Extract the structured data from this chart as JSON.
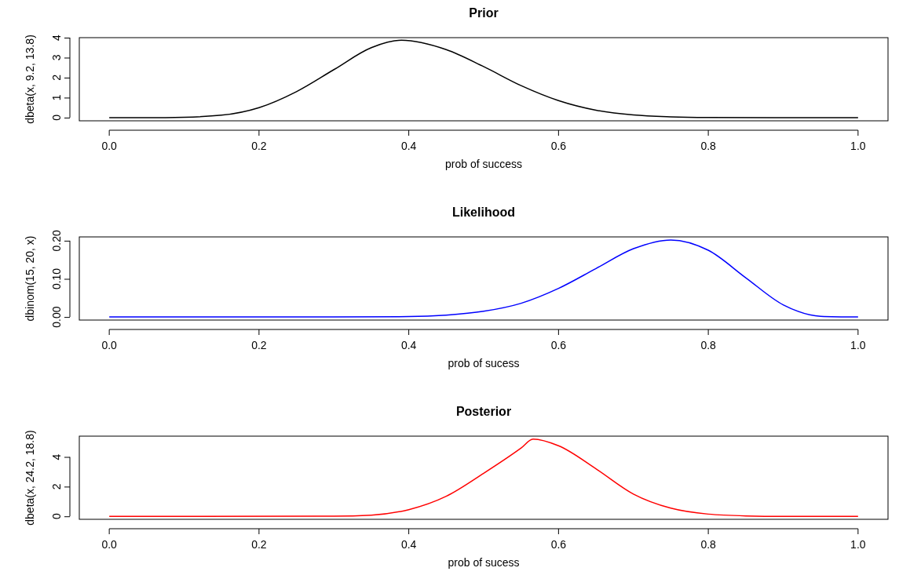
{
  "chart_data": [
    {
      "type": "line",
      "title": "Prior",
      "xlabel": "prob of success",
      "ylabel": "dbeta(x, 9.2, 13.8)",
      "xlim": [
        -0.04,
        1.04
      ],
      "ylim": [
        -0.16,
        4.0
      ],
      "xticks": [
        {
          "value": 0,
          "label": "0.0"
        },
        {
          "value": 0.2,
          "label": "0.2"
        },
        {
          "value": 0.4,
          "label": "0.4"
        },
        {
          "value": 0.6,
          "label": "0.6"
        },
        {
          "value": 0.8,
          "label": "0.8"
        },
        {
          "value": 1,
          "label": "1.0"
        }
      ],
      "yticks": [
        0,
        1,
        2,
        3,
        4
      ],
      "series": [
        {
          "color": "#000000",
          "x": [
            0,
            0.05,
            0.1,
            0.15,
            0.2,
            0.25,
            0.3,
            0.35,
            0.39,
            0.45,
            0.5,
            0.55,
            0.6,
            0.65,
            0.7,
            0.75,
            0.8,
            0.9,
            1.0
          ],
          "values": [
            0,
            0,
            0.02,
            0.12,
            0.5,
            1.3,
            2.4,
            3.5,
            3.87,
            3.4,
            2.55,
            1.6,
            0.85,
            0.37,
            0.13,
            0.04,
            0.01,
            0,
            0
          ]
        }
      ]
    },
    {
      "type": "line",
      "title": "Likelihood",
      "xlabel": "prob of sucess",
      "ylabel": "dbinom(15, 20, x)",
      "xlim": [
        -0.04,
        1.04
      ],
      "ylim": [
        -0.008,
        0.21
      ],
      "xticks": [
        {
          "value": 0,
          "label": "0.0"
        },
        {
          "value": 0.2,
          "label": "0.2"
        },
        {
          "value": 0.4,
          "label": "0.4"
        },
        {
          "value": 0.6,
          "label": "0.6"
        },
        {
          "value": 0.8,
          "label": "0.8"
        },
        {
          "value": 1,
          "label": "1.0"
        }
      ],
      "yticks": [
        {
          "value": 0,
          "label": "0.00"
        },
        {
          "value": 0.1,
          "label": "0.10"
        },
        {
          "value": 0.2,
          "label": "0.20"
        }
      ],
      "series": [
        {
          "color": "#0000ff",
          "x": [
            0,
            0.3,
            0.4,
            0.45,
            0.5,
            0.55,
            0.6,
            0.65,
            0.7,
            0.75,
            0.8,
            0.85,
            0.9,
            0.95,
            1.0
          ],
          "values": [
            0,
            0,
            0.001,
            0.005,
            0.015,
            0.036,
            0.075,
            0.127,
            0.179,
            0.202,
            0.175,
            0.103,
            0.032,
            0.002,
            0
          ]
        }
      ]
    },
    {
      "type": "line",
      "title": "Posterior",
      "xlabel": "prob of sucess",
      "ylabel": "dbeta(x, 24.2, 18.8)",
      "xlim": [
        -0.04,
        1.04
      ],
      "ylim": [
        -0.2,
        5.4
      ],
      "xticks": [
        {
          "value": 0,
          "label": "0.0"
        },
        {
          "value": 0.2,
          "label": "0.2"
        },
        {
          "value": 0.4,
          "label": "0.4"
        },
        {
          "value": 0.6,
          "label": "0.6"
        },
        {
          "value": 0.8,
          "label": "0.8"
        },
        {
          "value": 1,
          "label": "1.0"
        }
      ],
      "yticks": [
        0,
        2,
        4
      ],
      "series": [
        {
          "color": "#ff0000",
          "x": [
            0,
            0.3,
            0.35,
            0.4,
            0.45,
            0.5,
            0.55,
            0.566,
            0.6,
            0.65,
            0.7,
            0.75,
            0.8,
            0.85,
            0.9,
            1.0
          ],
          "values": [
            0,
            0.01,
            0.08,
            0.45,
            1.35,
            2.9,
            4.6,
            5.2,
            4.75,
            3.2,
            1.5,
            0.55,
            0.15,
            0.03,
            0,
            0
          ]
        }
      ]
    }
  ]
}
